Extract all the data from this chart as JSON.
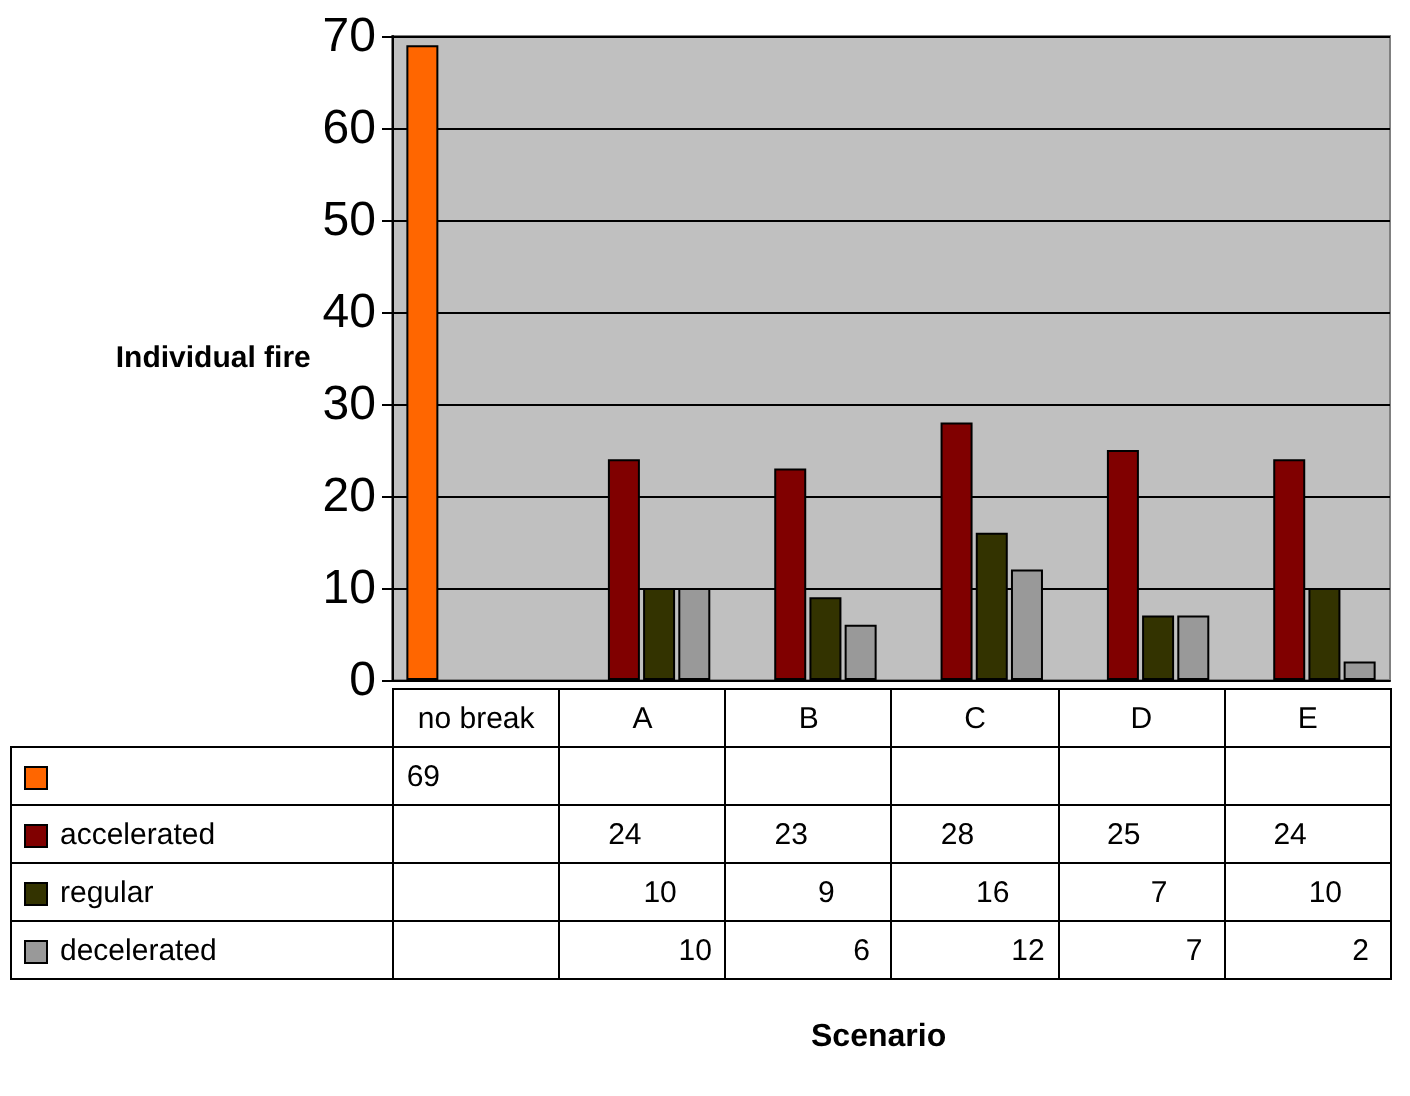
{
  "chart_data": {
    "type": "bar",
    "annotations": [
      "Scenario"
    ],
    "ylabel": "Individual fire",
    "legend": "bottom left",
    "categories": [
      "no break",
      "A",
      "B",
      "C",
      "D",
      "E"
    ],
    "series": [
      {
        "color": "#ff6600",
        "values": [
          69,
          null,
          null,
          null,
          null,
          null
        ]
      },
      {
        "name": "accelerated",
        "color": "#800000",
        "values": [
          null,
          24,
          23,
          28,
          25,
          24
        ]
      },
      {
        "name": "regular",
        "color": "#333300",
        "values": [
          null,
          10,
          9,
          16,
          7,
          10
        ]
      },
      {
        "name": "decelerated",
        "color": "#999999",
        "values": [
          null,
          10,
          6,
          12,
          7,
          2
        ]
      }
    ],
    "ylim": [
      0,
      70
    ],
    "yticks": [
      0,
      10,
      20,
      30,
      40,
      50,
      60,
      70
    ],
    "grid": "y",
    "data_labels": true
  }
}
